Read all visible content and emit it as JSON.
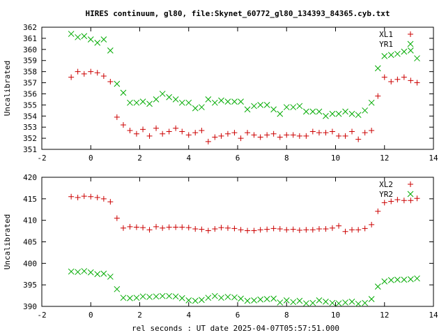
{
  "title": "HIRES continuum, gl80, file:Skynet_60772_gl80_134393_84365.cyb.txt",
  "xlabel": "rel seconds : UT date 2025-04-07T05:57:51.000",
  "chart_data": [
    {
      "type": "scatter",
      "ylabel": "Uncalibrated",
      "xlim": [
        -2,
        14
      ],
      "ylim": [
        351,
        362
      ],
      "xticks": [
        "-2",
        "0",
        "2",
        "4",
        "6",
        "8",
        "10",
        "12",
        "14"
      ],
      "yticks": [
        "351",
        "352",
        "353",
        "354",
        "355",
        "356",
        "357",
        "358",
        "359",
        "360",
        "361",
        "362"
      ],
      "legend": "top-right",
      "series": [
        {
          "name": "XL1",
          "marker": "plus",
          "color": "#cc0000",
          "x": [
            -0.8,
            -0.53,
            -0.27,
            0.0,
            0.27,
            0.53,
            0.8,
            1.07,
            1.33,
            1.6,
            1.87,
            2.13,
            2.4,
            2.67,
            2.93,
            3.2,
            3.47,
            3.73,
            4.0,
            4.27,
            4.53,
            4.8,
            5.07,
            5.33,
            5.6,
            5.87,
            6.13,
            6.4,
            6.67,
            6.93,
            7.2,
            7.47,
            7.73,
            8.0,
            8.27,
            8.53,
            8.8,
            9.07,
            9.33,
            9.6,
            9.87,
            10.13,
            10.4,
            10.67,
            10.93,
            11.2,
            11.47,
            11.73,
            12.0,
            12.27,
            12.53,
            12.8,
            13.07,
            13.33
          ],
          "y": [
            357.5,
            358.0,
            357.8,
            358.0,
            357.9,
            357.6,
            357.1,
            353.9,
            353.2,
            352.7,
            352.4,
            352.8,
            352.2,
            352.9,
            352.4,
            352.6,
            352.9,
            352.6,
            352.3,
            352.5,
            352.7,
            351.7,
            352.1,
            352.2,
            352.4,
            352.5,
            352.0,
            352.5,
            352.3,
            352.1,
            352.3,
            352.4,
            352.1,
            352.3,
            352.3,
            352.2,
            352.2,
            352.6,
            352.5,
            352.5,
            352.6,
            352.2,
            352.2,
            352.6,
            351.9,
            352.5,
            352.7,
            355.8,
            357.5,
            357.1,
            357.3,
            357.5,
            357.2,
            357.0
          ]
        },
        {
          "name": "YR1",
          "marker": "cross",
          "color": "#00aa00",
          "x": [
            -0.8,
            -0.53,
            -0.27,
            0.0,
            0.27,
            0.53,
            0.8,
            1.07,
            1.33,
            1.6,
            1.87,
            2.13,
            2.4,
            2.67,
            2.93,
            3.2,
            3.47,
            3.73,
            4.0,
            4.27,
            4.53,
            4.8,
            5.07,
            5.33,
            5.6,
            5.87,
            6.13,
            6.4,
            6.67,
            6.93,
            7.2,
            7.47,
            7.73,
            8.0,
            8.27,
            8.53,
            8.8,
            9.07,
            9.33,
            9.6,
            9.87,
            10.13,
            10.4,
            10.67,
            10.93,
            11.2,
            11.47,
            11.73,
            12.0,
            12.27,
            12.53,
            12.8,
            13.07,
            13.33
          ],
          "y": [
            361.4,
            361.1,
            361.2,
            360.9,
            360.6,
            360.9,
            359.9,
            356.9,
            356.1,
            355.2,
            355.2,
            355.3,
            355.1,
            355.5,
            356.0,
            355.7,
            355.5,
            355.2,
            355.2,
            354.7,
            354.8,
            355.5,
            355.2,
            355.4,
            355.3,
            355.3,
            355.3,
            354.6,
            354.9,
            355.0,
            355.0,
            354.6,
            354.2,
            354.8,
            354.8,
            354.9,
            354.4,
            354.4,
            354.4,
            354.0,
            354.2,
            354.2,
            354.4,
            354.2,
            354.1,
            354.5,
            355.2,
            358.3,
            359.4,
            359.5,
            359.6,
            359.8,
            359.9,
            359.2
          ]
        }
      ]
    },
    {
      "type": "scatter",
      "ylabel": "Uncalibrated",
      "xlim": [
        -2,
        14
      ],
      "ylim": [
        390,
        420
      ],
      "xticks": [
        "-2",
        "0",
        "2",
        "4",
        "6",
        "8",
        "10",
        "12",
        "14"
      ],
      "yticks": [
        "390",
        "395",
        "400",
        "405",
        "410",
        "415",
        "420"
      ],
      "legend": "top-right",
      "series": [
        {
          "name": "XL2",
          "marker": "plus",
          "color": "#cc0000",
          "x": [
            -0.8,
            -0.53,
            -0.27,
            0.0,
            0.27,
            0.53,
            0.8,
            1.07,
            1.33,
            1.6,
            1.87,
            2.13,
            2.4,
            2.67,
            2.93,
            3.2,
            3.47,
            3.73,
            4.0,
            4.27,
            4.53,
            4.8,
            5.07,
            5.33,
            5.6,
            5.87,
            6.13,
            6.4,
            6.67,
            6.93,
            7.2,
            7.47,
            7.73,
            8.0,
            8.27,
            8.53,
            8.8,
            9.07,
            9.33,
            9.6,
            9.87,
            10.13,
            10.4,
            10.67,
            10.93,
            11.2,
            11.47,
            11.73,
            12.0,
            12.27,
            12.53,
            12.8,
            13.07,
            13.33
          ],
          "y": [
            415.5,
            415.3,
            415.6,
            415.5,
            415.3,
            415.0,
            414.3,
            410.5,
            408.2,
            408.5,
            408.4,
            408.3,
            407.8,
            408.5,
            408.2,
            408.4,
            408.4,
            408.4,
            408.3,
            408.0,
            407.9,
            407.6,
            408.0,
            408.3,
            408.2,
            408.1,
            407.8,
            407.6,
            407.6,
            407.8,
            407.9,
            408.1,
            408.0,
            407.8,
            407.9,
            407.7,
            407.8,
            407.8,
            408.0,
            408.0,
            408.2,
            408.7,
            407.4,
            407.8,
            407.8,
            408.1,
            409.0,
            412.1,
            414.1,
            414.4,
            414.8,
            414.6,
            414.6,
            415.1
          ]
        },
        {
          "name": "YR2",
          "marker": "cross",
          "color": "#00aa00",
          "x": [
            -0.8,
            -0.53,
            -0.27,
            0.0,
            0.27,
            0.53,
            0.8,
            1.07,
            1.33,
            1.6,
            1.87,
            2.13,
            2.4,
            2.67,
            2.93,
            3.2,
            3.47,
            3.73,
            4.0,
            4.27,
            4.53,
            4.8,
            5.07,
            5.33,
            5.6,
            5.87,
            6.13,
            6.4,
            6.67,
            6.93,
            7.2,
            7.47,
            7.73,
            8.0,
            8.27,
            8.53,
            8.8,
            9.07,
            9.33,
            9.6,
            9.87,
            10.13,
            10.4,
            10.67,
            10.93,
            11.2,
            11.47,
            11.73,
            12.0,
            12.27,
            12.53,
            12.8,
            13.07,
            13.33
          ],
          "y": [
            398.1,
            398.0,
            398.2,
            397.9,
            397.5,
            397.6,
            396.9,
            394.0,
            392.0,
            391.9,
            392.0,
            392.3,
            392.2,
            392.3,
            392.4,
            392.4,
            392.3,
            391.9,
            391.4,
            391.3,
            391.5,
            392.0,
            392.4,
            392.0,
            392.2,
            392.1,
            391.8,
            391.3,
            391.4,
            391.6,
            391.7,
            391.8,
            390.9,
            391.4,
            391.0,
            391.3,
            390.7,
            390.8,
            391.4,
            391.1,
            390.8,
            390.7,
            390.9,
            391.1,
            390.6,
            390.8,
            391.7,
            394.6,
            395.8,
            396.1,
            396.2,
            396.2,
            396.3,
            396.5
          ]
        }
      ]
    }
  ]
}
